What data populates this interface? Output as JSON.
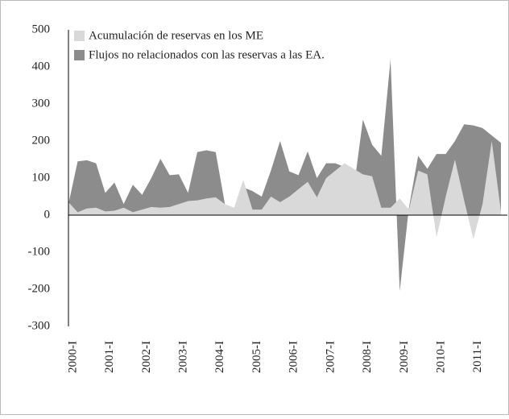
{
  "chart_data": {
    "type": "area",
    "categories": [
      "2000-I",
      null,
      null,
      null,
      "2001-I",
      null,
      null,
      null,
      "2002-I",
      null,
      null,
      null,
      "2003-I",
      null,
      null,
      null,
      "2004-I",
      null,
      null,
      null,
      "2005-I",
      null,
      null,
      null,
      "2006-I",
      null,
      null,
      null,
      "2007-I",
      null,
      null,
      null,
      "2008-I",
      null,
      null,
      null,
      "2009-I",
      null,
      null,
      null,
      "2010-I",
      null,
      null,
      null,
      "2011-I",
      null,
      null,
      null
    ],
    "series": [
      {
        "name": "Flujos no relacionados con las reservas a las EA.",
        "color": "#8c8c8c",
        "values": [
          30,
          145,
          148,
          140,
          60,
          88,
          30,
          82,
          55,
          100,
          152,
          108,
          110,
          60,
          170,
          175,
          170,
          30,
          10,
          75,
          65,
          50,
          120,
          200,
          118,
          108,
          172,
          100,
          140,
          140,
          130,
          70,
          258,
          190,
          160,
          420,
          -205,
          20,
          160,
          125,
          165,
          165,
          200,
          245,
          242,
          235,
          215,
          195
        ]
      },
      {
        "name": "Acumulación de reservas en los ME",
        "color": "#d9d9d9",
        "values": [
          35,
          8,
          18,
          20,
          10,
          12,
          20,
          8,
          15,
          22,
          20,
          22,
          30,
          38,
          40,
          45,
          48,
          30,
          20,
          95,
          15,
          15,
          50,
          35,
          50,
          70,
          90,
          48,
          100,
          120,
          140,
          125,
          110,
          105,
          20,
          20,
          45,
          15,
          120,
          110,
          -60,
          50,
          150,
          40,
          -65,
          30,
          200,
          10
        ]
      }
    ],
    "ylim": [
      -300,
      500
    ],
    "yticks": [
      -300,
      -200,
      -100,
      0,
      100,
      200,
      300,
      400,
      500
    ],
    "legend": "upper left"
  }
}
